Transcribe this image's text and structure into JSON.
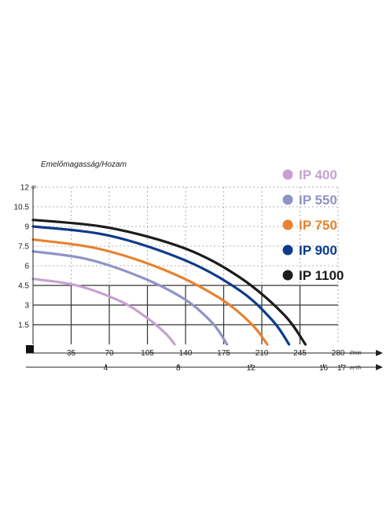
{
  "chart_data": {
    "type": "line",
    "title": "Emelőmagasság/Hozam",
    "ylabel_unit": "m",
    "x_unit": "l/min",
    "x2_unit": "m³/h",
    "xlim": [
      0,
      280
    ],
    "ylim": [
      0,
      12
    ],
    "x_ticks": [
      "35",
      "70",
      "105",
      "140",
      "175",
      "210",
      "245",
      "280"
    ],
    "y_ticks": [
      "1.5",
      "3",
      "4.5",
      "6",
      "7.5",
      "9",
      "10.5",
      "12"
    ],
    "x2_ticks": [
      {
        "label": "4",
        "value": 66.67
      },
      {
        "label": "8",
        "value": 133.33
      },
      {
        "label": "12",
        "value": 200
      },
      {
        "label": "16",
        "value": 266.67
      },
      {
        "label": "17",
        "value": 283.33
      }
    ],
    "grid": true,
    "legend_position": "right",
    "series": [
      {
        "name": "IP 400",
        "color": "#c8a0d2",
        "x": [
          0,
          40,
          80,
          105,
          122,
          130
        ],
        "y": [
          5.0,
          4.5,
          3.3,
          2.0,
          0.8,
          0
        ]
      },
      {
        "name": "IP 550",
        "color": "#8f94c6",
        "x": [
          0,
          50,
          100,
          140,
          165,
          178
        ],
        "y": [
          7.1,
          6.5,
          5.1,
          3.4,
          1.6,
          0
        ]
      },
      {
        "name": "IP 750",
        "color": "#e8822e",
        "x": [
          0,
          60,
          120,
          170,
          200,
          215
        ],
        "y": [
          8.0,
          7.3,
          5.7,
          3.6,
          1.6,
          0
        ]
      },
      {
        "name": "IP 900",
        "color": "#0d3b8a",
        "x": [
          0,
          70,
          140,
          190,
          220,
          235
        ],
        "y": [
          9.0,
          8.3,
          6.4,
          4.1,
          1.8,
          0
        ]
      },
      {
        "name": "IP 1100",
        "color": "#1c1c1c",
        "x": [
          0,
          70,
          140,
          190,
          230,
          250
        ],
        "y": [
          9.5,
          8.9,
          7.3,
          5.1,
          2.3,
          0
        ]
      }
    ]
  }
}
